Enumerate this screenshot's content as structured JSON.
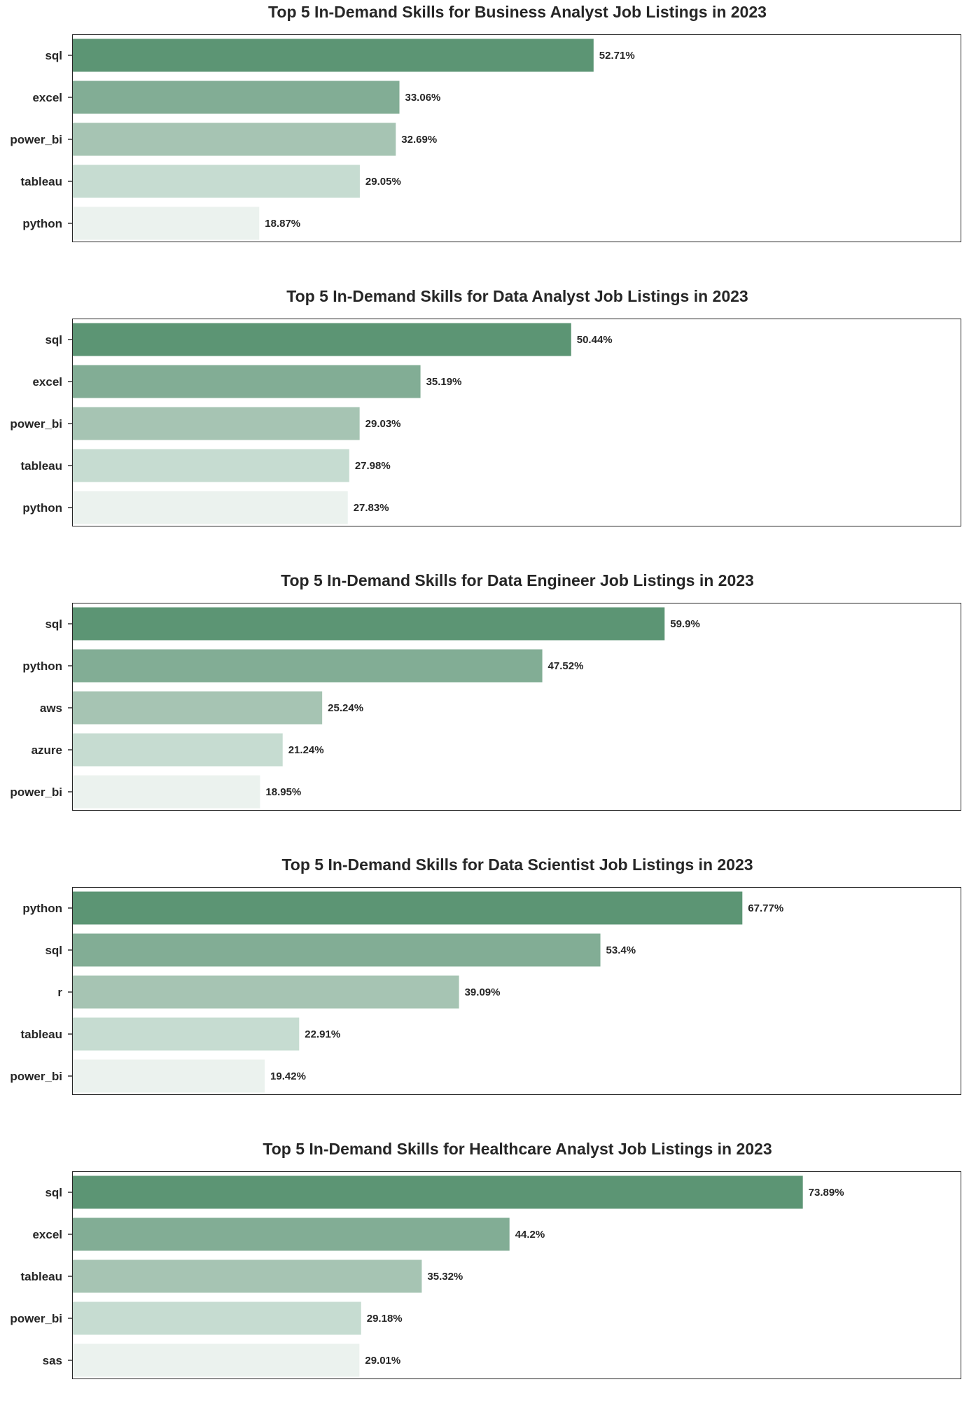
{
  "chart_data": [
    {
      "type": "bar",
      "orientation": "horizontal",
      "title": "Top 5 In-Demand Skills for Business Analyst Job Listings in 2023",
      "categories": [
        "sql",
        "excel",
        "power_bi",
        "tableau",
        "python"
      ],
      "values": [
        52.71,
        33.06,
        32.69,
        29.05,
        18.87
      ],
      "value_labels": [
        "52.71%",
        "33.06%",
        "32.69%",
        "29.05%",
        "18.87%"
      ],
      "xlim": [
        0,
        90
      ]
    },
    {
      "type": "bar",
      "orientation": "horizontal",
      "title": "Top 5 In-Demand Skills for Data Analyst Job Listings in 2023",
      "categories": [
        "sql",
        "excel",
        "power_bi",
        "tableau",
        "python"
      ],
      "values": [
        50.44,
        35.19,
        29.03,
        27.98,
        27.83
      ],
      "value_labels": [
        "50.44%",
        "35.19%",
        "29.03%",
        "27.98%",
        "27.83%"
      ],
      "xlim": [
        0,
        90
      ]
    },
    {
      "type": "bar",
      "orientation": "horizontal",
      "title": "Top 5 In-Demand Skills for Data Engineer Job Listings in 2023",
      "categories": [
        "sql",
        "python",
        "aws",
        "azure",
        "power_bi"
      ],
      "values": [
        59.9,
        47.52,
        25.24,
        21.24,
        18.95
      ],
      "value_labels": [
        "59.9%",
        "47.52%",
        "25.24%",
        "21.24%",
        "18.95%"
      ],
      "xlim": [
        0,
        90
      ]
    },
    {
      "type": "bar",
      "orientation": "horizontal",
      "title": "Top 5 In-Demand Skills for Data Scientist Job Listings in 2023",
      "categories": [
        "python",
        "sql",
        "r",
        "tableau",
        "power_bi"
      ],
      "values": [
        67.77,
        53.4,
        39.09,
        22.91,
        19.42
      ],
      "value_labels": [
        "67.77%",
        "53.4%",
        "39.09%",
        "22.91%",
        "19.42%"
      ],
      "xlim": [
        0,
        90
      ]
    },
    {
      "type": "bar",
      "orientation": "horizontal",
      "title": "Top 5 In-Demand Skills for Healthcare Analyst Job Listings in 2023",
      "categories": [
        "sql",
        "excel",
        "tableau",
        "power_bi",
        "sas"
      ],
      "values": [
        73.89,
        44.2,
        35.32,
        29.18,
        29.01
      ],
      "value_labels": [
        "73.89%",
        "44.2%",
        "35.32%",
        "29.18%",
        "29.01%"
      ],
      "xlim": [
        0,
        90
      ]
    }
  ],
  "bar_colors": [
    "#5c9574",
    "#82ad95",
    "#a6c4b3",
    "#c6dcd1",
    "#ebf2ee"
  ],
  "grid": false,
  "x_axis_visible": false
}
